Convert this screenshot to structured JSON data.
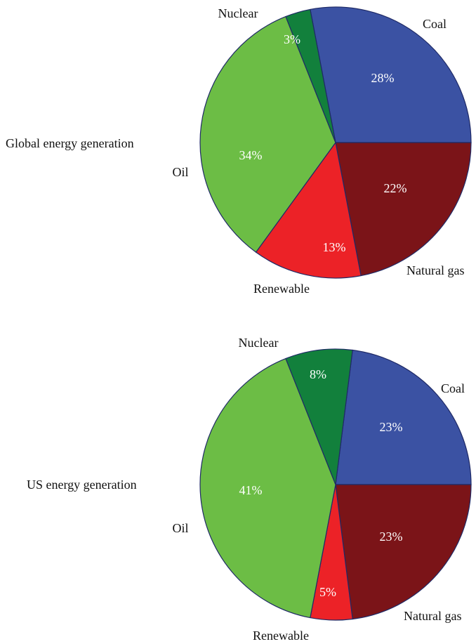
{
  "chart_data": [
    {
      "type": "pie",
      "title": "Global energy generation",
      "slices": [
        {
          "label": "Coal",
          "value": 28,
          "value_label": "28%",
          "color": "#3b52a3"
        },
        {
          "label": "Natural gas",
          "value": 22,
          "value_label": "22%",
          "color": "#7b1418"
        },
        {
          "label": "Renewable",
          "value": 13,
          "value_label": "13%",
          "color": "#ec2227"
        },
        {
          "label": "Oil",
          "value": 34,
          "value_label": "34%",
          "color": "#6cbd45"
        },
        {
          "label": "Nuclear",
          "value": 3,
          "value_label": "3%",
          "color": "#12803c"
        }
      ]
    },
    {
      "type": "pie",
      "title": "US energy generation",
      "slices": [
        {
          "label": "Coal",
          "value": 23,
          "value_label": "23%",
          "color": "#3b52a3"
        },
        {
          "label": "Natural gas",
          "value": 23,
          "value_label": "23%",
          "color": "#7b1418"
        },
        {
          "label": "Renewable",
          "value": 5,
          "value_label": "5%",
          "color": "#ec2227"
        },
        {
          "label": "Oil",
          "value": 41,
          "value_label": "41%",
          "color": "#6cbd45"
        },
        {
          "label": "Nuclear",
          "value": 8,
          "value_label": "8%",
          "color": "#12803c"
        }
      ]
    }
  ]
}
